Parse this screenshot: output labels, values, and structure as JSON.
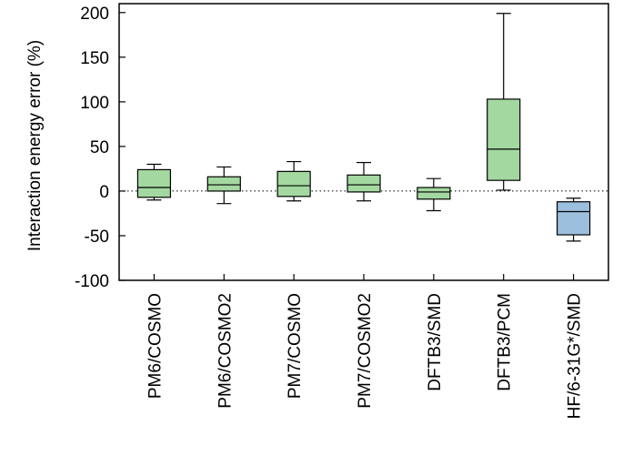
{
  "chart_data": {
    "type": "box",
    "title": "",
    "xlabel": "",
    "ylabel": "Interaction energy error (%)",
    "ylim": [
      -100,
      210
    ],
    "yticks": [
      "200",
      "150",
      "100",
      "50",
      "0",
      "-50",
      "-100"
    ],
    "ytick_values": [
      200,
      150,
      100,
      50,
      0,
      -50,
      -100
    ],
    "reference_line": {
      "y": 0,
      "style": "dotted"
    },
    "grid": false,
    "legend": "none",
    "categories": [
      "PM6/COSMO",
      "PM6/COSMO2",
      "PM7/COSMO",
      "PM7/COSMO2",
      "DFTB3/SMD",
      "DFTB3/PCM",
      "HF/6-31G*/SMD"
    ],
    "boxes": [
      {
        "category": "PM6/COSMO",
        "whisker_low": -10,
        "q1": -7,
        "median": 4,
        "q3": 24,
        "whisker_high": 30,
        "color": "#a3d9a0"
      },
      {
        "category": "PM6/COSMO2",
        "whisker_low": -14,
        "q1": 0,
        "median": 7,
        "q3": 16,
        "whisker_high": 27,
        "color": "#a3d9a0"
      },
      {
        "category": "PM7/COSMO",
        "whisker_low": -11,
        "q1": -6,
        "median": 6,
        "q3": 22,
        "whisker_high": 33,
        "color": "#a3d9a0"
      },
      {
        "category": "PM7/COSMO2",
        "whisker_low": -11,
        "q1": -1,
        "median": 7,
        "q3": 18,
        "whisker_high": 32,
        "color": "#a3d9a0"
      },
      {
        "category": "DFTB3/SMD",
        "whisker_low": -22,
        "q1": -9,
        "median": -1,
        "q3": 4,
        "whisker_high": 14,
        "color": "#a3d9a0"
      },
      {
        "category": "DFTB3/PCM",
        "whisker_low": 1,
        "q1": 12,
        "median": 47,
        "q3": 103,
        "whisker_high": 199,
        "color": "#a3d9a0"
      },
      {
        "category": "HF/6-31G*/SMD",
        "whisker_low": -56,
        "q1": -49,
        "median": -23,
        "q3": -12,
        "whisker_high": -8,
        "color": "#9dbfde"
      }
    ]
  }
}
